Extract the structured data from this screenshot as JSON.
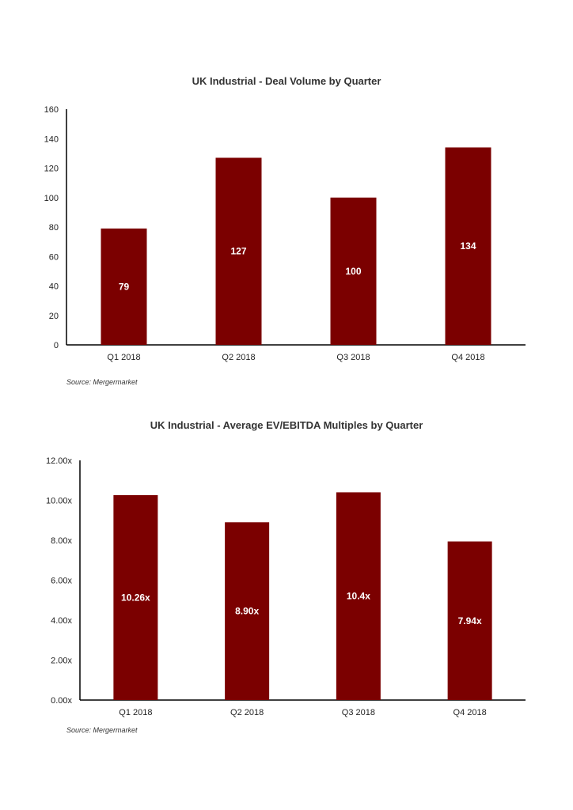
{
  "chart_data": [
    {
      "type": "bar",
      "title": "UK Industrial - Deal Volume by Quarter",
      "categories": [
        "Q1 2018",
        "Q2 2018",
        "Q3 2018",
        "Q4 2018"
      ],
      "values": [
        79,
        127,
        100,
        134
      ],
      "data_labels": [
        "79",
        "127",
        "100",
        "134"
      ],
      "yticks": [
        "0",
        "20",
        "40",
        "60",
        "80",
        "100",
        "120",
        "140",
        "160"
      ],
      "ylim": [
        0,
        160
      ],
      "grid": false,
      "legend": "none",
      "bar_color": "#7b0000",
      "source": "Source: Mergermarket"
    },
    {
      "type": "bar",
      "title": "UK Industrial - Average EV/EBITDA Multiples by Quarter",
      "categories": [
        "Q1 2018",
        "Q2 2018",
        "Q3 2018",
        "Q4 2018"
      ],
      "values": [
        10.26,
        8.9,
        10.4,
        7.94
      ],
      "data_labels": [
        "10.26x",
        "8.90x",
        "10.4x",
        "7.94x"
      ],
      "yticks": [
        "0.00x",
        "2.00x",
        "4.00x",
        "6.00x",
        "8.00x",
        "10.00x",
        "12.00x"
      ],
      "ylim": [
        0,
        12
      ],
      "grid": false,
      "legend": "none",
      "bar_color": "#7b0000",
      "source": "Source: Mergermarket"
    }
  ]
}
